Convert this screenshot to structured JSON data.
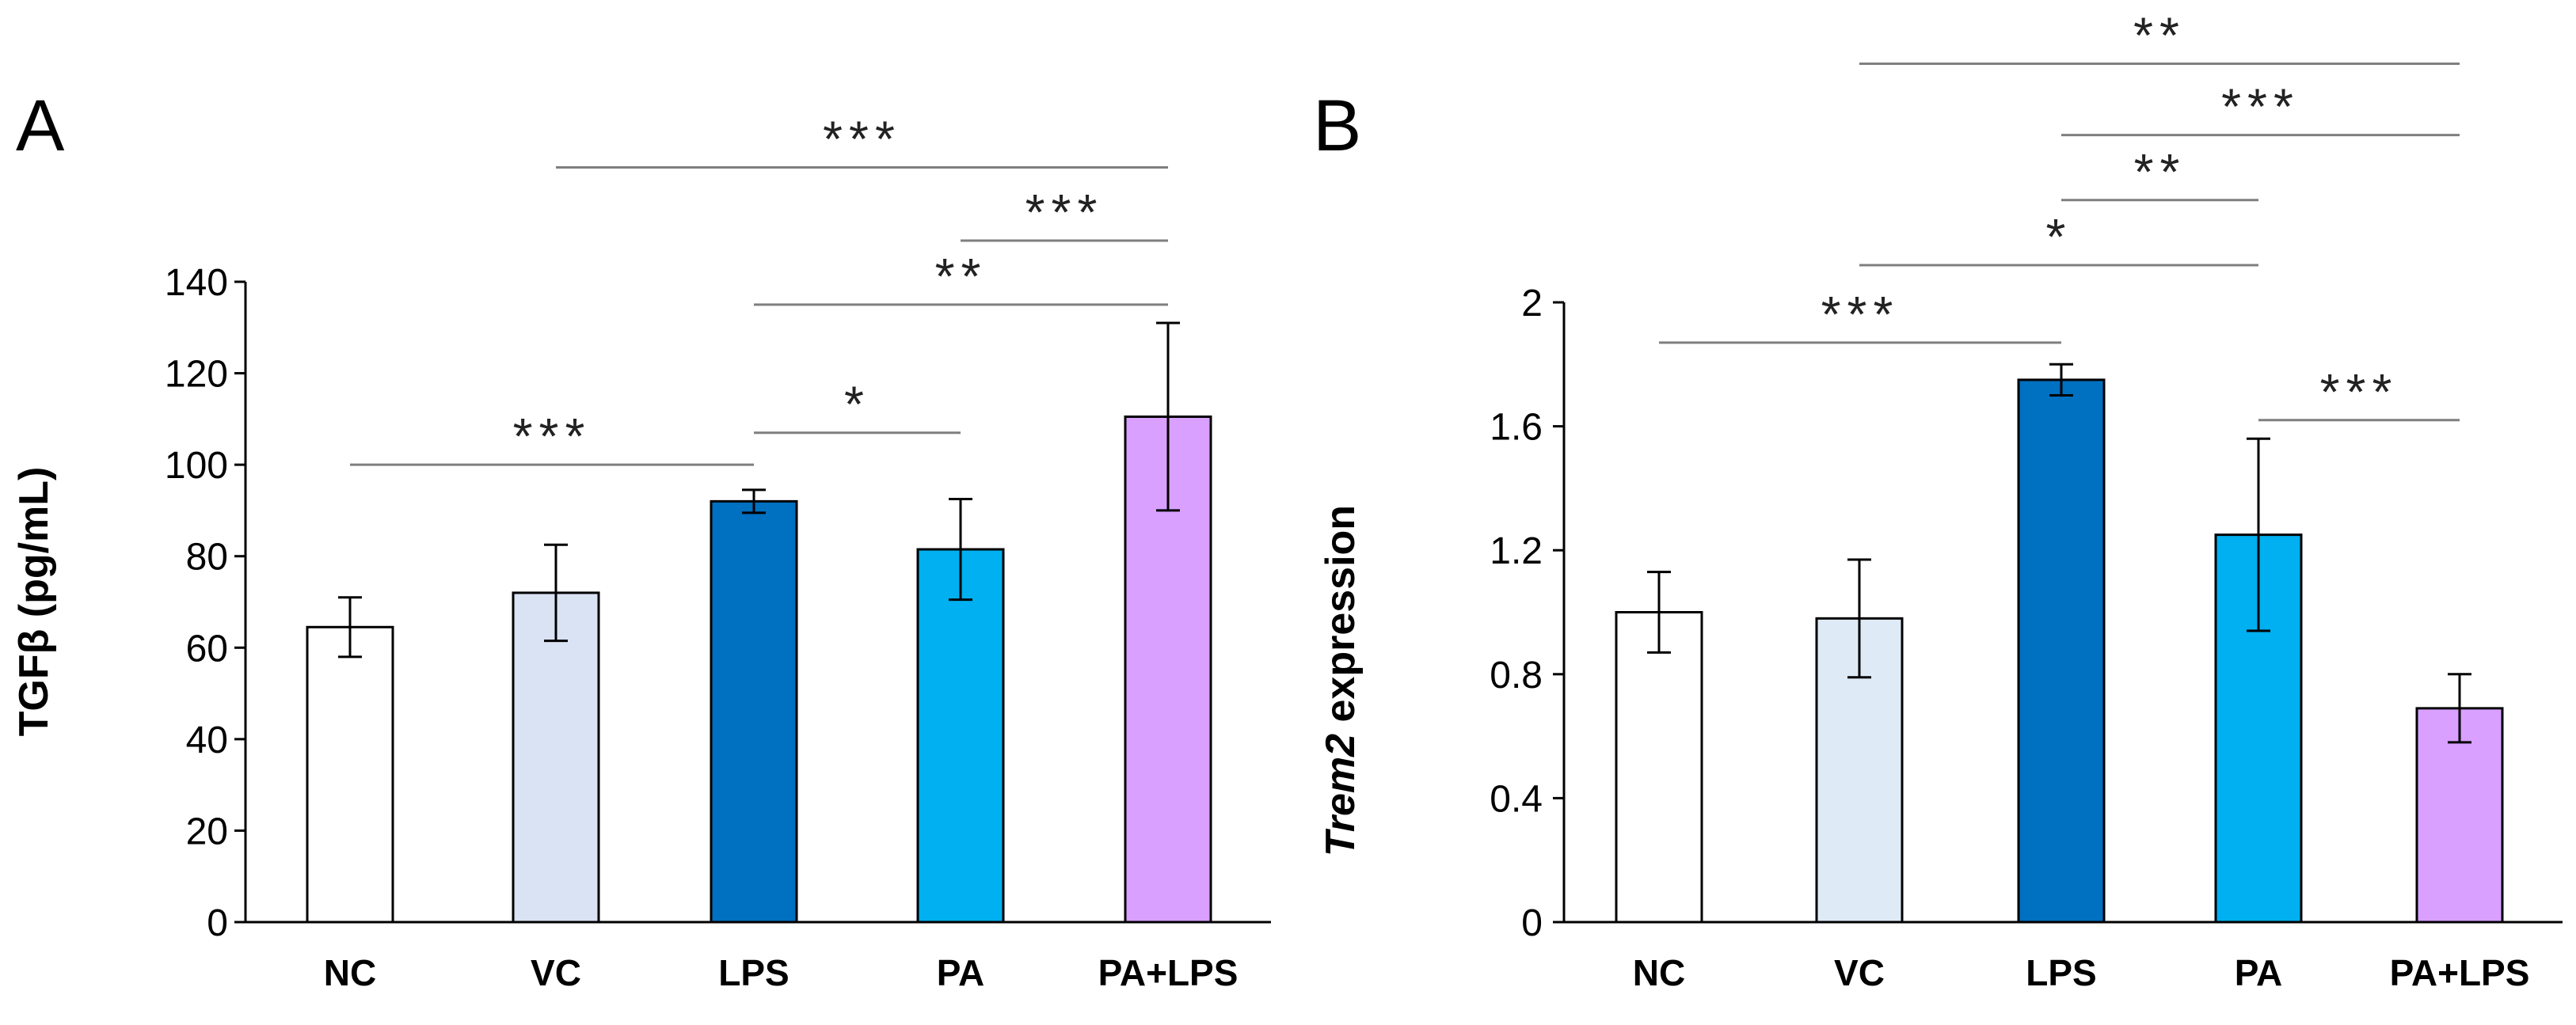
{
  "chart_data": [
    {
      "panel": "A",
      "type": "bar",
      "ylabel": "TGFβ (pg/mL)",
      "ylabel_parts": [
        {
          "text": "TGFβ (pg/mL)",
          "italic": false
        }
      ],
      "ylim": [
        0,
        140
      ],
      "yticks": [
        0,
        20,
        40,
        60,
        80,
        100,
        120,
        140
      ],
      "categories": [
        "NC",
        "VC",
        "LPS",
        "PA",
        "PA+LPS"
      ],
      "values": [
        64.5,
        72,
        92,
        81.5,
        110.5
      ],
      "errors": [
        6.5,
        10.5,
        2.5,
        11,
        20.5
      ],
      "colors": [
        "#ffffff",
        "#dae3f3",
        "#0070c0",
        "#00b0f0",
        "#d9a0ff"
      ],
      "significance": [
        {
          "from": 0,
          "to": 2,
          "label": "***",
          "level": 100
        },
        {
          "from": 2,
          "to": 3,
          "label": "*",
          "level": 107
        },
        {
          "from": 2,
          "to": 4,
          "label": "**",
          "level": 135
        },
        {
          "from": 3,
          "to": 4,
          "label": "***",
          "level": 149
        },
        {
          "from": 1,
          "to": 4,
          "label": "***",
          "level": 165
        }
      ]
    },
    {
      "panel": "B",
      "type": "bar",
      "ylabel": "Trem2 expression",
      "ylabel_parts": [
        {
          "text": "Trem2",
          "italic": true
        },
        {
          "text": " expression",
          "italic": false
        }
      ],
      "ylim": [
        0,
        2
      ],
      "yticks": [
        "0",
        "0.4",
        "0.8",
        "1.2",
        "1.6",
        "2"
      ],
      "ytick_values": [
        0,
        0.4,
        0.8,
        1.2,
        1.6,
        2
      ],
      "categories": [
        "NC",
        "VC",
        "LPS",
        "PA",
        "PA+LPS"
      ],
      "values": [
        1.0,
        0.98,
        1.75,
        1.25,
        0.69
      ],
      "errors": [
        0.13,
        0.19,
        0.05,
        0.31,
        0.11
      ],
      "colors": [
        "#ffffff",
        "#deebf7",
        "#0070c0",
        "#00b0f0",
        "#d9a0ff"
      ],
      "significance": [
        {
          "from": 0,
          "to": 2,
          "label": "***",
          "level": 1.87
        },
        {
          "from": 3,
          "to": 4,
          "label": "***",
          "level": 1.62
        },
        {
          "from": 1,
          "to": 3,
          "label": "*",
          "level": 2.12
        },
        {
          "from": 2,
          "to": 3,
          "label": "**",
          "level": 2.33
        },
        {
          "from": 2,
          "to": 4,
          "label": "***",
          "level": 2.54
        },
        {
          "from": 1,
          "to": 4,
          "label": "**",
          "level": 2.77
        }
      ]
    }
  ]
}
